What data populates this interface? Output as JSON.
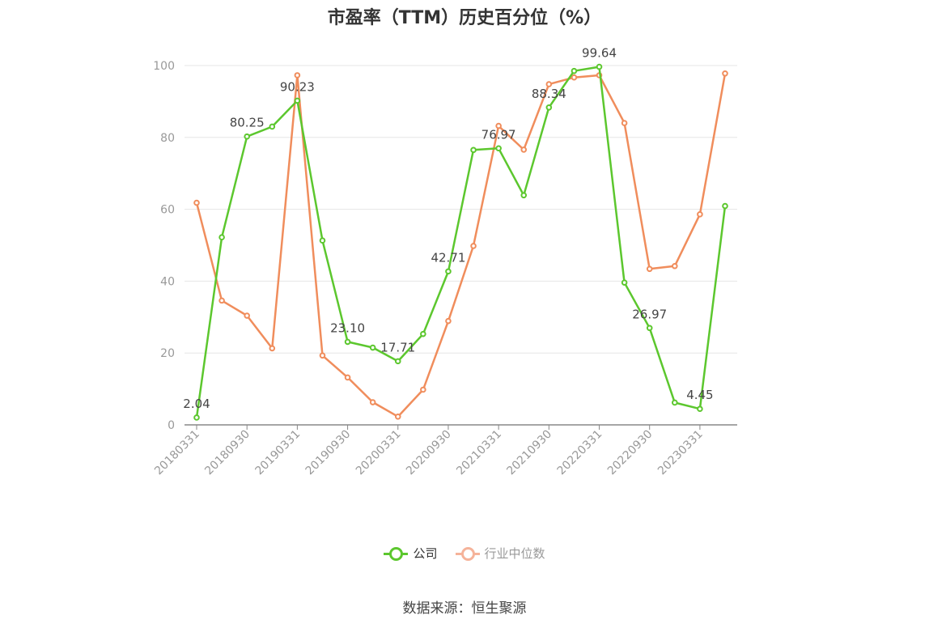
{
  "title": "市盈率（TTM）历史百分位（%）",
  "source": "数据来源：恒生聚源",
  "colors": {
    "company": "#5cc72e",
    "industry": "#f08d5c",
    "grid": "#e6e6e6",
    "axis": "#888888"
  },
  "chart_data": {
    "type": "line",
    "title": "市盈率（TTM）历史百分位（%）",
    "xlabel": "",
    "ylabel": "",
    "ylim": [
      0,
      100
    ],
    "yticks": [
      0,
      20,
      40,
      60,
      80,
      100
    ],
    "grid": true,
    "legend": "bottom-center",
    "x": [
      "20180331",
      "20180630",
      "20180930",
      "20181231",
      "20190331",
      "20190630",
      "20190930",
      "20191231",
      "20200331",
      "20200630",
      "20200930",
      "20201231",
      "20210331",
      "20210630",
      "20210930",
      "20211231",
      "20220331",
      "20220630",
      "20220930",
      "20221231",
      "20230331",
      "20230630"
    ],
    "xtick_labels": [
      "20180331",
      "20180930",
      "20190331",
      "20190930",
      "20200331",
      "20200930",
      "20210331",
      "20210930",
      "20220331",
      "20220930",
      "20230331"
    ],
    "series": [
      {
        "name": "公司",
        "values": [
          2.04,
          52.2,
          80.25,
          83.0,
          90.23,
          51.3,
          23.1,
          21.5,
          17.71,
          25.3,
          42.71,
          76.5,
          76.97,
          63.9,
          88.34,
          98.5,
          99.64,
          39.6,
          26.97,
          6.2,
          4.45,
          60.9
        ],
        "labels": [
          "2.04",
          "",
          "80.25",
          "",
          "90.23",
          "",
          "23.10",
          "",
          "17.71",
          "",
          "42.71",
          "",
          "76.97",
          "",
          "88.34",
          "",
          "99.64",
          "",
          "26.97",
          "",
          "4.45",
          ""
        ]
      },
      {
        "name": "行业中位数",
        "values": [
          61.8,
          34.6,
          30.4,
          21.3,
          97.3,
          19.3,
          13.2,
          6.3,
          2.3,
          9.8,
          28.9,
          49.8,
          83.2,
          76.6,
          94.8,
          96.7,
          97.3,
          84.0,
          43.4,
          44.2,
          58.6,
          97.8
        ]
      }
    ]
  }
}
